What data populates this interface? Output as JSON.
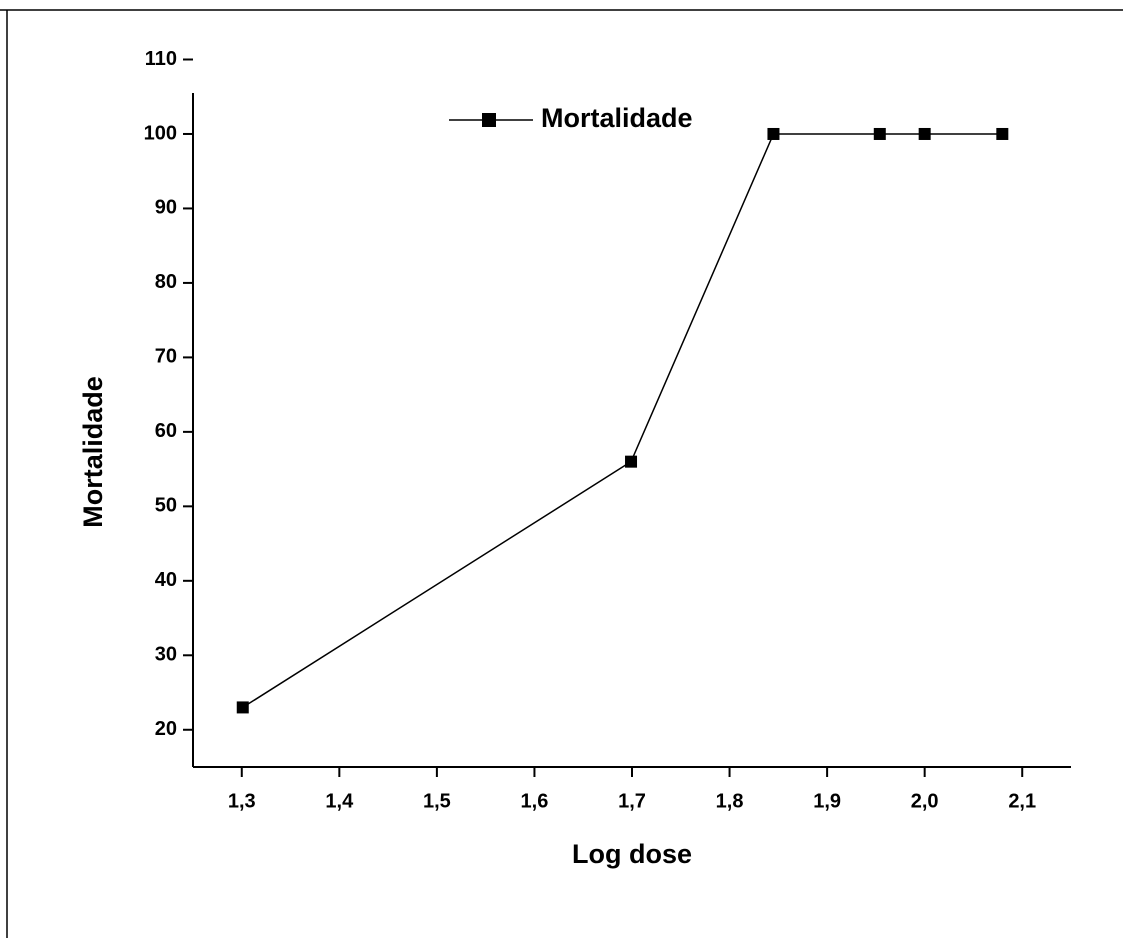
{
  "chart_data": {
    "type": "line",
    "x_label": "Log dose",
    "y_label": "Mortalidade",
    "x": [
      1.301,
      1.699,
      1.845,
      1.954,
      2.0,
      2.0796
    ],
    "series": [
      {
        "name": "Mortalidade",
        "color": "#000000",
        "values": [
          23,
          56,
          100,
          100,
          100,
          100
        ]
      }
    ],
    "xlim": [
      1.25,
      2.15
    ],
    "xticks": [
      {
        "value": 1.3,
        "label": "1,3"
      },
      {
        "value": 1.4,
        "label": "1,4"
      },
      {
        "value": 1.5,
        "label": "1,5"
      },
      {
        "value": 1.6,
        "label": "1,6"
      },
      {
        "value": 1.7,
        "label": "1,7"
      },
      {
        "value": 1.8,
        "label": "1,8"
      },
      {
        "value": 1.9,
        "label": "1,9"
      },
      {
        "value": 2.0,
        "label": "2,0"
      },
      {
        "value": 2.1,
        "label": "2,1"
      }
    ],
    "ylim": [
      15,
      110
    ],
    "yticks": [
      20,
      30,
      40,
      50,
      60,
      70,
      80,
      90,
      100,
      110
    ],
    "grid": false,
    "legend": "top"
  }
}
